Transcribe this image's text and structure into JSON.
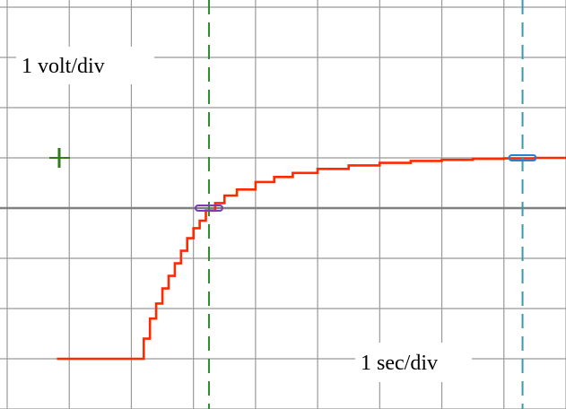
{
  "scope": {
    "vertical_scale_label": "1 volt/div",
    "horizontal_scale_label": "1 sec/div"
  },
  "colors": {
    "background": "#ffffff",
    "grid": "#999999",
    "center_axis": "#808080",
    "trace": "#ff2a00",
    "trigger_marker": "#2e7d1a",
    "cursor_1": "#2e8b2e",
    "cursor_2": "#3a9aa8",
    "cursor_1_marker": "#7a3db5",
    "cursor_2_marker": "#2a7fd4"
  },
  "icons": {
    "trigger_marker": "trigger-marker-icon"
  },
  "chart_data": {
    "type": "line",
    "title": "",
    "xlabel": "1 sec/div",
    "ylabel": "1 volt/div",
    "xlim": [
      0,
      9
    ],
    "ylim": [
      -4,
      4
    ],
    "grid": true,
    "grid_divisions": {
      "x": 9,
      "y": 8
    },
    "series": [
      {
        "x": [
          0.8,
          2.15,
          2.2,
          2.3,
          2.4,
          2.5,
          2.6,
          2.7,
          2.8,
          2.9,
          3.0,
          3.1,
          3.2,
          3.35,
          3.5,
          3.7,
          4.0,
          4.3,
          4.6,
          5.0,
          5.5,
          6.0,
          6.5,
          7.0,
          7.5,
          8.0,
          8.5,
          9.0
        ],
        "y": [
          -3.0,
          -3.0,
          -2.6,
          -2.2,
          -1.9,
          -1.6,
          -1.35,
          -1.1,
          -0.85,
          -0.6,
          -0.4,
          -0.25,
          -0.05,
          0.1,
          0.25,
          0.37,
          0.52,
          0.62,
          0.7,
          0.78,
          0.85,
          0.9,
          0.94,
          0.96,
          0.98,
          0.99,
          1.0,
          1.0
        ]
      }
    ],
    "cursors": [
      {
        "x": 3.25,
        "y": 0.0
      },
      {
        "x": 8.3,
        "y": 1.0
      }
    ],
    "trigger_level": 1.0
  }
}
